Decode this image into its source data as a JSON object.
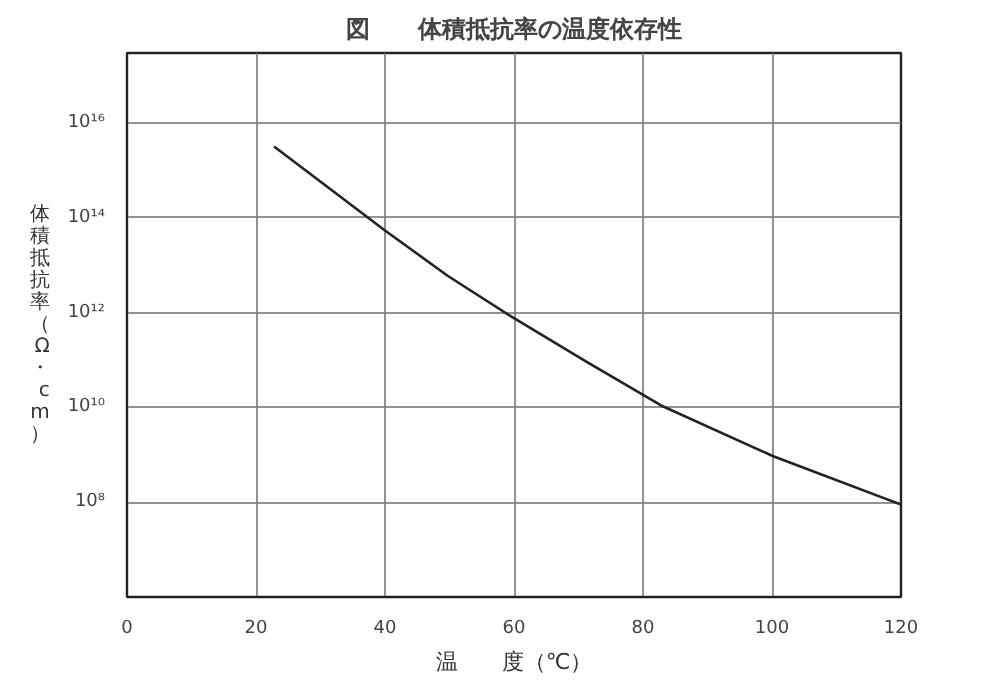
{
  "chart_data": {
    "type": "line",
    "title": "図　　体積抵抗率の温度依存性",
    "xlabel": "温　　度（℃）",
    "ylabel": "体積抵抗率（Ω・cm）",
    "x": [
      22.8,
      40,
      49.7,
      59.8,
      71.4,
      82.8,
      100.2,
      120
    ],
    "series": [
      {
        "color": "#222222",
        "values": [
          3200000000000000.0,
          54000000000000.0,
          6000000000000.0,
          790000000000.0,
          89000000000.0,
          11000000000.0,
          930000000.0,
          89000000.0
        ]
      }
    ],
    "log": "y",
    "xlim": [
      0,
      120
    ],
    "xticks": [
      0,
      20,
      40,
      60,
      80,
      100,
      120
    ],
    "ylim": [
      1000000.0,
      3e+17
    ],
    "yticks": [
      {
        "value": 100000000.0,
        "label": "10⁸"
      },
      {
        "value": 10000000000.0,
        "label": "10¹⁰"
      },
      {
        "value": 1000000000000.0,
        "label": "10¹²"
      },
      {
        "value": 100000000000000.0,
        "label": "10¹⁴"
      },
      {
        "value": 1e+16,
        "label": "10¹⁶"
      }
    ],
    "grid": true,
    "marker": "none",
    "line_style": "solid"
  }
}
